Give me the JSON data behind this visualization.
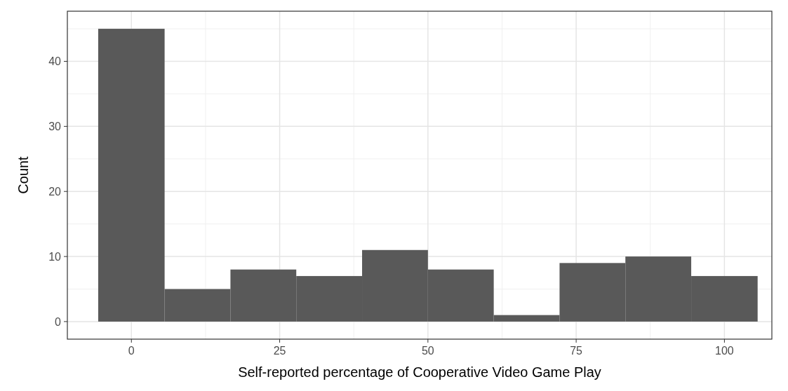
{
  "chart_data": {
    "type": "histogram",
    "xlabel": "Self-reported percentage of Cooperative Video Game Play",
    "ylabel": "Count",
    "bins": [
      -5.6,
      5.6,
      16.7,
      27.8,
      38.9,
      50,
      61.1,
      72.2,
      83.3,
      94.4,
      105.6
    ],
    "values": [
      45,
      5,
      8,
      7,
      11,
      8,
      1,
      9,
      10,
      7
    ],
    "color": "#595959",
    "xlim": [
      -10.8,
      108
    ],
    "xticks": [
      0,
      25,
      50,
      75,
      100
    ],
    "ylim": [
      -2.7,
      47.7
    ],
    "yticks": [
      0,
      10,
      20,
      30,
      40
    ],
    "grid": true
  }
}
